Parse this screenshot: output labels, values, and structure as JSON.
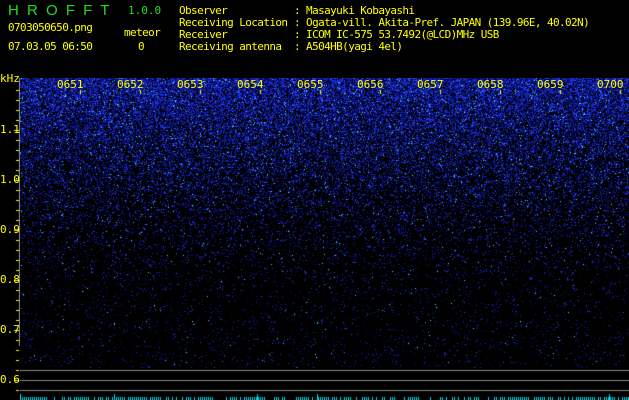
{
  "app": {
    "name": "H R O F F T",
    "version": "1.0.0"
  },
  "file": {
    "name": "0703050650.png",
    "datetime": "07.03.05 06:50"
  },
  "meteor": {
    "label": "meteor",
    "count": "0"
  },
  "info": [
    {
      "label": "Observer",
      "value": ": Masayuki Kobayashi"
    },
    {
      "label": "Receiving Location",
      "value": ": Ogata-vill. Akita-Pref. JAPAN (139.96E, 40.02N)"
    },
    {
      "label": "Receiver",
      "value": ": ICOM IC-575 53.7492(@LCD)MHz USB"
    },
    {
      "label": "Receiving antenna",
      "value": ": A504HB(yagi 4el)"
    }
  ],
  "spectrogram": {
    "y_unit": "kHz",
    "y_ticks": [
      "1.1",
      "1.0",
      "0.9",
      "0.8",
      "0.7",
      "0.6"
    ],
    "time_labels": [
      "0651",
      "0652",
      "0653",
      "0654",
      "0655",
      "0656",
      "0657",
      "0658",
      "0659",
      "0700"
    ],
    "colors": {
      "noise": "#1a2aff",
      "highlight": "#00e0ff",
      "text": "#ffff00",
      "title": "#22dd22"
    }
  }
}
